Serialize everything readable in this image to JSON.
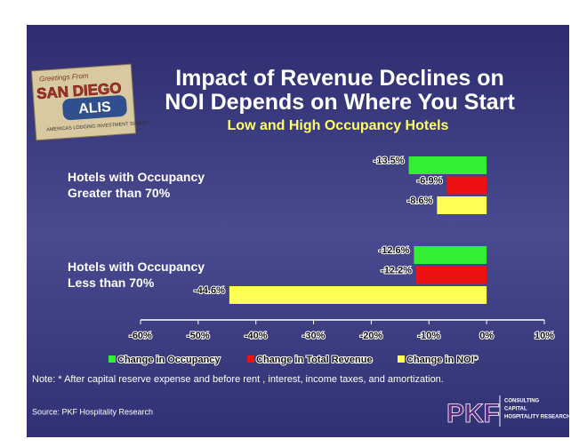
{
  "chart_data": {
    "type": "bar",
    "orientation": "horizontal",
    "title": "Impact of Revenue Declines on NOI Depends on Where You Start",
    "subtitle": "Low and High Occupancy Hotels",
    "categories": [
      "Hotels with Occupancy Greater than 70%",
      "Hotels with Occupancy Less than 70%"
    ],
    "series": [
      {
        "name": "Change in Occupancy",
        "color": "#33ee33",
        "values": [
          -13.5,
          -12.6
        ],
        "value_labels": [
          "-13.5%",
          "-12.6%"
        ]
      },
      {
        "name": "Change in Total Revenue",
        "color": "#ee1111",
        "values": [
          -6.9,
          -12.2
        ],
        "value_labels": [
          "-6.9%",
          "-12.2%"
        ]
      },
      {
        "name": "Change in NOI*",
        "color": "#ffff55",
        "values": [
          -8.6,
          -44.6
        ],
        "value_labels": [
          "-8.6%",
          "-44.6%"
        ]
      }
    ],
    "xlim": [
      -60,
      10
    ],
    "xticks": [
      {
        "value": -60,
        "label": "-60%"
      },
      {
        "value": -50,
        "label": "-50%"
      },
      {
        "value": -40,
        "label": "-40%"
      },
      {
        "value": -30,
        "label": "-30%"
      },
      {
        "value": -20,
        "label": "-20%"
      },
      {
        "value": -10,
        "label": "-10%"
      },
      {
        "value": 0,
        "label": "0%"
      },
      {
        "value": 10,
        "label": "10%"
      }
    ],
    "legend": "bottom"
  },
  "note": "Note: * After capital reserve expense and before rent , interest, income taxes, and amortization.",
  "source": "Source: PKF Hospitality Research",
  "badge": {
    "greeting": "Greetings From",
    "city": "SAN DIEGO",
    "name": "ALIS",
    "tagline": "AMERICAS LODGING INVESTMENT SUMMIT"
  },
  "logo": {
    "name": "PKF",
    "tagline": [
      "CONSULTING",
      "CAPITAL",
      "HOSPITALITY RESEARCH"
    ]
  }
}
